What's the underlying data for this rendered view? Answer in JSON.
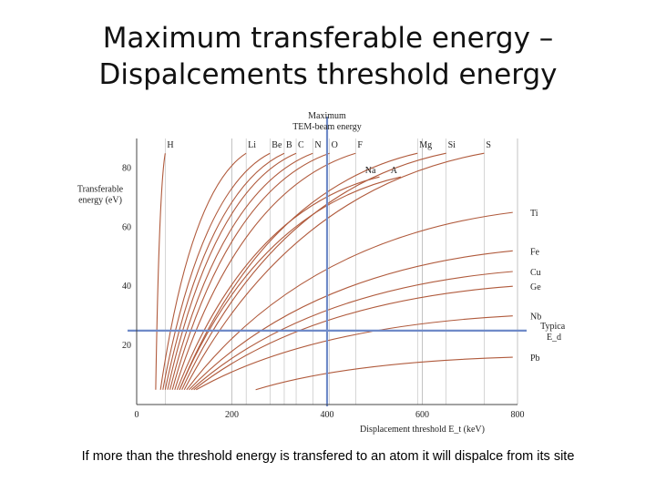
{
  "title": {
    "line1": "Maximum transferable energy –",
    "line2": "Dispalcements threshold energy"
  },
  "caption": "If more than the threshold energy is transfered to an atom it will dispalce from its site",
  "chart_data": {
    "type": "line",
    "xlabel": "Displacement threshold E_t (keV)",
    "ylabel": [
      "Transferable",
      "energy (eV)"
    ],
    "xlim": [
      0,
      800
    ],
    "ylim": [
      0,
      90
    ],
    "xticks": [
      0,
      200,
      400,
      600,
      800
    ],
    "yticks": [
      20,
      40,
      60,
      80
    ],
    "grid": true,
    "top_label": [
      "Maximum",
      "TEM-beam energy"
    ],
    "reference_lines": {
      "vertical_x": 400,
      "horizontal_y": 25,
      "horizontal_label": "Typical",
      "horizontal_sublabel": "E_d"
    },
    "series": [
      {
        "name": "H",
        "values": [
          [
            40,
            5
          ],
          [
            60,
            85
          ]
        ]
      },
      {
        "name": "Li",
        "values": [
          [
            50,
            5
          ],
          [
            230,
            85
          ]
        ]
      },
      {
        "name": "Be",
        "values": [
          [
            55,
            5
          ],
          [
            280,
            85
          ]
        ]
      },
      {
        "name": "B",
        "values": [
          [
            60,
            5
          ],
          [
            310,
            85
          ]
        ]
      },
      {
        "name": "C",
        "values": [
          [
            65,
            5
          ],
          [
            335,
            85
          ]
        ]
      },
      {
        "name": "N",
        "values": [
          [
            70,
            5
          ],
          [
            370,
            85
          ]
        ]
      },
      {
        "name": "O",
        "values": [
          [
            75,
            5
          ],
          [
            405,
            85
          ]
        ]
      },
      {
        "name": "F",
        "values": [
          [
            80,
            5
          ],
          [
            460,
            85
          ]
        ]
      },
      {
        "name": "Na",
        "values": [
          [
            85,
            5
          ],
          [
            510,
            77
          ]
        ]
      },
      {
        "name": "Mg",
        "values": [
          [
            90,
            5
          ],
          [
            590,
            85
          ]
        ]
      },
      {
        "name": "A",
        "values": [
          [
            90,
            5
          ],
          [
            555,
            77
          ]
        ]
      },
      {
        "name": "Si",
        "values": [
          [
            95,
            5
          ],
          [
            650,
            85
          ]
        ]
      },
      {
        "name": "S",
        "values": [
          [
            100,
            5
          ],
          [
            730,
            85
          ]
        ]
      },
      {
        "name": "Ti",
        "values": [
          [
            105,
            5
          ],
          [
            790,
            65
          ]
        ]
      },
      {
        "name": "Fe",
        "values": [
          [
            110,
            5
          ],
          [
            790,
            52
          ]
        ]
      },
      {
        "name": "Cu",
        "values": [
          [
            115,
            5
          ],
          [
            790,
            45
          ]
        ]
      },
      {
        "name": "Ge",
        "values": [
          [
            120,
            5
          ],
          [
            790,
            40
          ]
        ]
      },
      {
        "name": "Nb",
        "values": [
          [
            125,
            5
          ],
          [
            790,
            30
          ]
        ]
      },
      {
        "name": "Pb",
        "values": [
          [
            250,
            5
          ],
          [
            790,
            16
          ]
        ]
      }
    ],
    "labels_position": "top and right ends of curves"
  }
}
